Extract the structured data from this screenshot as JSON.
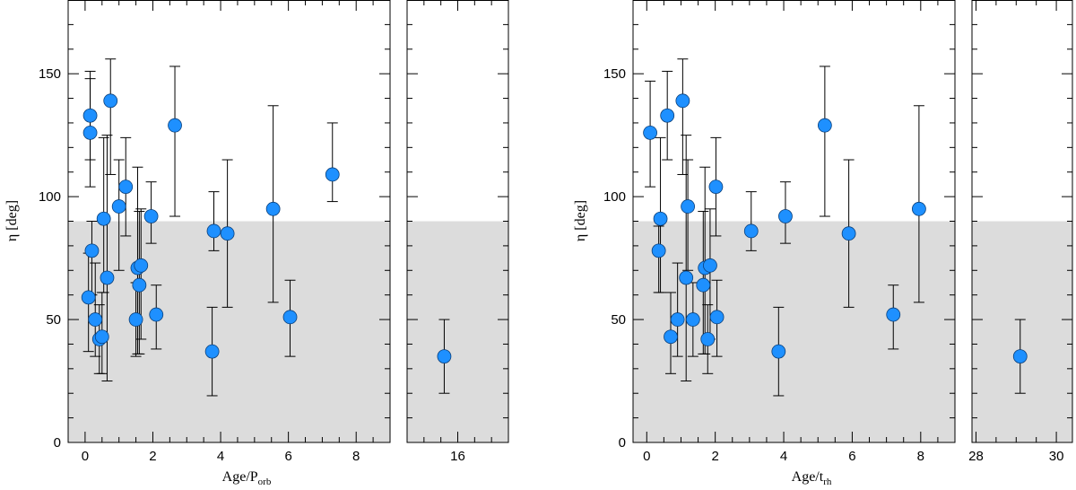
{
  "chart_data": [
    {
      "type": "scatter",
      "xlabel": "Age/P",
      "xlabel_sub": "orb",
      "ylabel": "η [deg]",
      "ylim": [
        0,
        180
      ],
      "yticks": [
        0,
        50,
        100,
        150
      ],
      "shaded_band": {
        "y_from": 0,
        "y_to": 90,
        "color": "#dcdcdc"
      },
      "marker_color": "#1e90ff",
      "broken_x_axis": true,
      "panels": [
        {
          "xlim": [
            -0.5,
            9.0
          ],
          "xticks": [
            0,
            2,
            4,
            6,
            8
          ]
        },
        {
          "xlim": [
            14.5,
            17.5
          ],
          "xticks": [
            16
          ]
        }
      ],
      "points": [
        {
          "x": 0.1,
          "y": 59,
          "err_low": 22,
          "err_high": 18
        },
        {
          "x": 0.15,
          "y": 126,
          "err_low": 22,
          "err_high": 22
        },
        {
          "x": 0.15,
          "y": 133,
          "err_low": 18,
          "err_high": 18
        },
        {
          "x": 0.2,
          "y": 78,
          "err_low": 18,
          "err_high": 12
        },
        {
          "x": 0.3,
          "y": 50,
          "err_low": 15,
          "err_high": 23
        },
        {
          "x": 0.42,
          "y": 42,
          "err_low": 14,
          "err_high": 14
        },
        {
          "x": 0.5,
          "y": 43,
          "err_low": 15,
          "err_high": 18
        },
        {
          "x": 0.55,
          "y": 91,
          "err_low": 30,
          "err_high": 33
        },
        {
          "x": 0.65,
          "y": 67,
          "err_low": 42,
          "err_high": 58
        },
        {
          "x": 0.75,
          "y": 139,
          "err_low": 30,
          "err_high": 17
        },
        {
          "x": 1.0,
          "y": 96,
          "err_low": 26,
          "err_high": 19
        },
        {
          "x": 1.2,
          "y": 104,
          "err_low": 20,
          "err_high": 20
        },
        {
          "x": 1.5,
          "y": 50,
          "err_low": 15,
          "err_high": 15
        },
        {
          "x": 1.55,
          "y": 71,
          "err_low": 35,
          "err_high": 41
        },
        {
          "x": 1.6,
          "y": 64,
          "err_low": 28,
          "err_high": 30
        },
        {
          "x": 1.65,
          "y": 72,
          "err_low": 30,
          "err_high": 23
        },
        {
          "x": 1.95,
          "y": 92,
          "err_low": 11,
          "err_high": 14
        },
        {
          "x": 2.1,
          "y": 52,
          "err_low": 14,
          "err_high": 12
        },
        {
          "x": 2.65,
          "y": 129,
          "err_low": 37,
          "err_high": 24
        },
        {
          "x": 3.75,
          "y": 37,
          "err_low": 18,
          "err_high": 18
        },
        {
          "x": 3.8,
          "y": 86,
          "err_low": 8,
          "err_high": 16
        },
        {
          "x": 4.2,
          "y": 85,
          "err_low": 30,
          "err_high": 30
        },
        {
          "x": 5.55,
          "y": 95,
          "err_low": 38,
          "err_high": 42
        },
        {
          "x": 6.05,
          "y": 51,
          "err_low": 16,
          "err_high": 15
        },
        {
          "x": 7.3,
          "y": 109,
          "err_low": 11,
          "err_high": 21
        },
        {
          "x": 15.6,
          "y": 35,
          "err_low": 15,
          "err_high": 15
        }
      ]
    },
    {
      "type": "scatter",
      "xlabel": "Age/t",
      "xlabel_sub": "rh",
      "ylabel": "η [deg]",
      "ylim": [
        0,
        180
      ],
      "yticks": [
        0,
        50,
        100,
        150
      ],
      "shaded_band": {
        "y_from": 0,
        "y_to": 90,
        "color": "#dcdcdc"
      },
      "marker_color": "#1e90ff",
      "broken_x_axis": true,
      "panels": [
        {
          "xlim": [
            -0.4,
            9.0
          ],
          "xticks": [
            0,
            2,
            4,
            6,
            8
          ]
        },
        {
          "xlim": [
            27.9,
            30.4
          ],
          "xticks": [
            28,
            30
          ]
        }
      ],
      "points": [
        {
          "x": 0.1,
          "y": 126,
          "err_low": 22,
          "err_high": 21
        },
        {
          "x": 0.35,
          "y": 78,
          "err_low": 17,
          "err_high": 10
        },
        {
          "x": 0.4,
          "y": 91,
          "err_low": 30,
          "err_high": 33
        },
        {
          "x": 0.6,
          "y": 133,
          "err_low": 18,
          "err_high": 18
        },
        {
          "x": 0.7,
          "y": 43,
          "err_low": 15,
          "err_high": 18
        },
        {
          "x": 0.9,
          "y": 50,
          "err_low": 15,
          "err_high": 23
        },
        {
          "x": 1.05,
          "y": 139,
          "err_low": 30,
          "err_high": 17
        },
        {
          "x": 1.15,
          "y": 67,
          "err_low": 42,
          "err_high": 58
        },
        {
          "x": 1.2,
          "y": 96,
          "err_low": 26,
          "err_high": 19
        },
        {
          "x": 1.35,
          "y": 50,
          "err_low": 15,
          "err_high": 15
        },
        {
          "x": 1.65,
          "y": 64,
          "err_low": 28,
          "err_high": 30
        },
        {
          "x": 1.7,
          "y": 71,
          "err_low": 35,
          "err_high": 41
        },
        {
          "x": 1.78,
          "y": 42,
          "err_low": 14,
          "err_high": 14
        },
        {
          "x": 1.85,
          "y": 72,
          "err_low": 30,
          "err_high": 23
        },
        {
          "x": 2.02,
          "y": 104,
          "err_low": 20,
          "err_high": 20
        },
        {
          "x": 2.05,
          "y": 51,
          "err_low": 16,
          "err_high": 15
        },
        {
          "x": 3.05,
          "y": 86,
          "err_low": 8,
          "err_high": 16
        },
        {
          "x": 3.85,
          "y": 37,
          "err_low": 18,
          "err_high": 18
        },
        {
          "x": 4.05,
          "y": 92,
          "err_low": 11,
          "err_high": 14
        },
        {
          "x": 5.2,
          "y": 129,
          "err_low": 37,
          "err_high": 24
        },
        {
          "x": 5.9,
          "y": 85,
          "err_low": 30,
          "err_high": 30
        },
        {
          "x": 7.2,
          "y": 52,
          "err_low": 14,
          "err_high": 12
        },
        {
          "x": 7.95,
          "y": 95,
          "err_low": 38,
          "err_high": 42
        },
        {
          "x": 29.1,
          "y": 35,
          "err_low": 15,
          "err_high": 15
        }
      ]
    }
  ]
}
